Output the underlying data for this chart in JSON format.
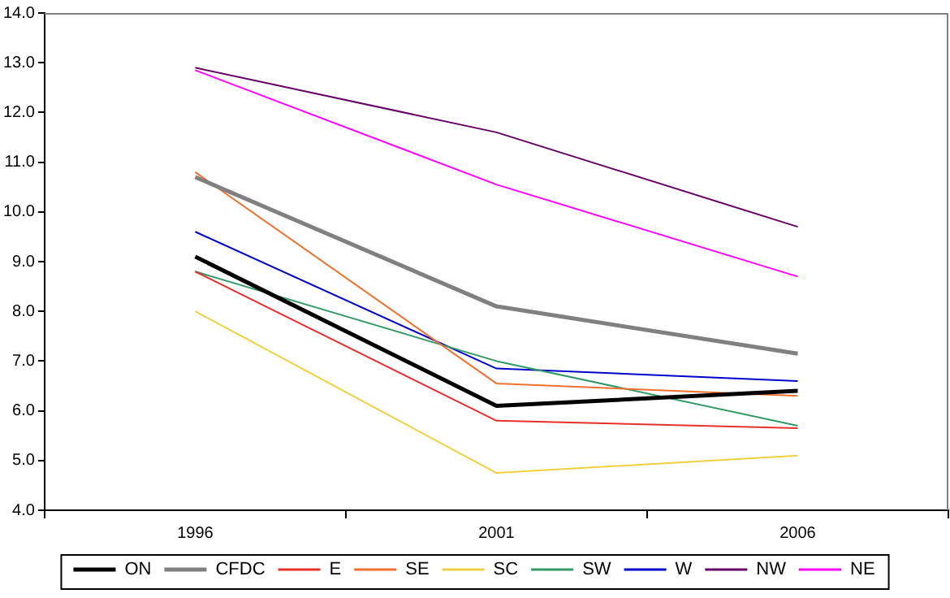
{
  "chart_data": {
    "type": "line",
    "categories": [
      "1996",
      "2001",
      "2006"
    ],
    "series": [
      {
        "name": "ON",
        "color": "#000000",
        "values": [
          9.1,
          6.1,
          6.4
        ]
      },
      {
        "name": "CFDC",
        "color": "#808080",
        "values": [
          10.7,
          8.1,
          7.15
        ]
      },
      {
        "name": "E",
        "color": "#e8302a",
        "values": [
          8.8,
          5.8,
          5.65
        ]
      },
      {
        "name": "SE",
        "color": "#f07030",
        "values": [
          10.8,
          6.55,
          6.3
        ]
      },
      {
        "name": "SC",
        "color": "#f0d040",
        "values": [
          8.0,
          4.75,
          5.1
        ]
      },
      {
        "name": "SW",
        "color": "#339966",
        "values": [
          8.8,
          7.0,
          5.7
        ]
      },
      {
        "name": "W",
        "color": "#0000cc",
        "values": [
          9.6,
          6.85,
          6.6
        ]
      },
      {
        "name": "NW",
        "color": "#660066",
        "values": [
          12.9,
          11.6,
          9.7
        ]
      },
      {
        "name": "NE",
        "color": "#ff00ff",
        "values": [
          12.85,
          10.55,
          8.7
        ]
      }
    ],
    "ylim": [
      4,
      14
    ],
    "yticks": [
      {
        "value": 4,
        "label": "4.0"
      },
      {
        "value": 5,
        "label": "5.0"
      },
      {
        "value": 6,
        "label": "6.0"
      },
      {
        "value": 7,
        "label": "7.0"
      },
      {
        "value": 8,
        "label": "8.0"
      },
      {
        "value": 9,
        "label": "9.0"
      },
      {
        "value": 10,
        "label": "10.0"
      },
      {
        "value": 11,
        "label": "11.0"
      },
      {
        "value": 12,
        "label": "12.0"
      },
      {
        "value": 13,
        "label": "13.0"
      },
      {
        "value": 14,
        "label": "14.0"
      }
    ],
    "grid": false,
    "legend": "bottom",
    "marker": "none",
    "line_style": "solid"
  }
}
